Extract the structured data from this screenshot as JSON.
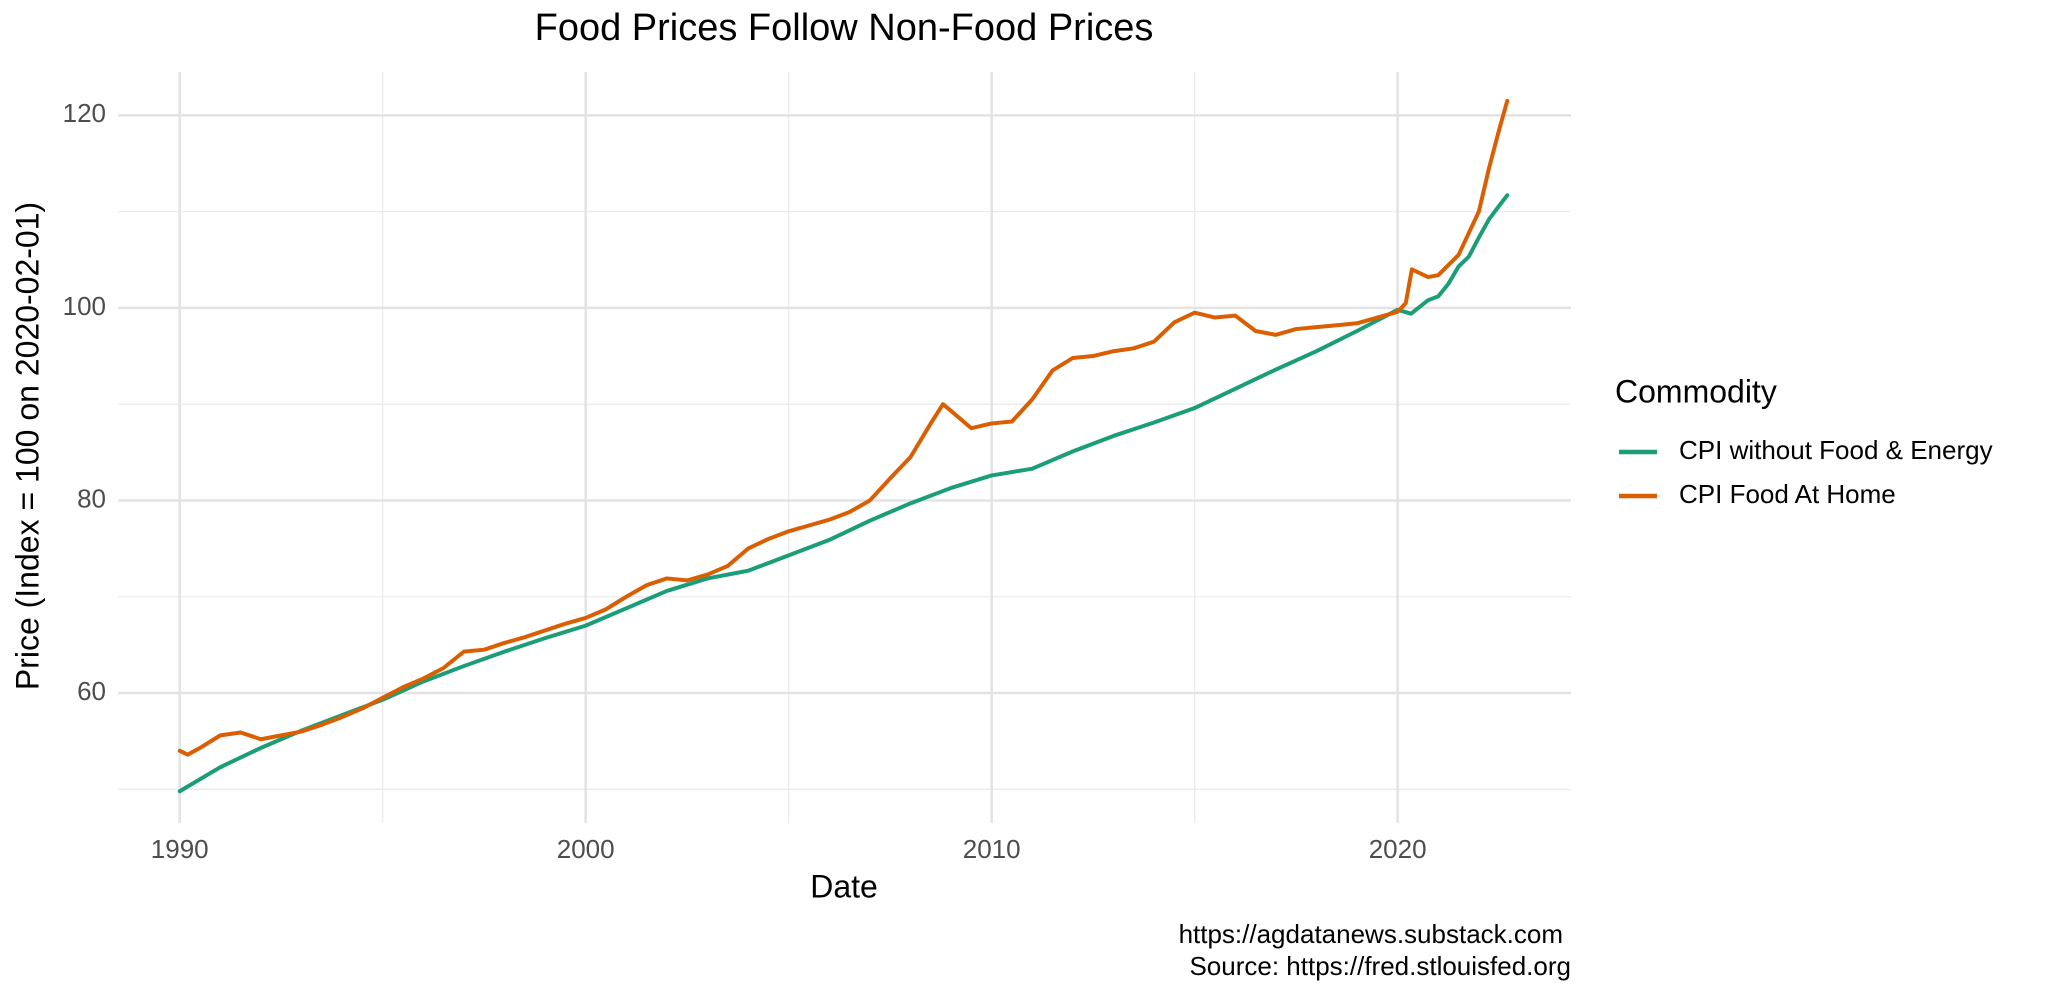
{
  "chart_data": {
    "type": "line",
    "title": "Food Prices Follow Non-Food Prices",
    "x_label": "Date",
    "y_label": "Price (Index = 100 on 2020-02-01)",
    "legend_title": "Commodity",
    "legend_position": "right",
    "caption": [
      "https://agdatanews.substack.com",
      "Source: https://fred.stlouisfed.org"
    ],
    "xlim": [
      1988.48,
      2024.27
    ],
    "ylim": [
      46.5,
      124.5
    ],
    "xticks": [
      1990,
      2000,
      2010,
      2020
    ],
    "yticks": [
      60,
      80,
      100,
      120
    ],
    "minor_xticks": [
      1995,
      2005,
      2015
    ],
    "minor_yticks": [
      50,
      70,
      90,
      110
    ],
    "grid": true,
    "series": [
      {
        "name": "CPI without Food & Energy",
        "color": "#1b9e77",
        "x": [
          1990,
          1991,
          1992,
          1993,
          1994,
          1995,
          1996,
          1997,
          1998,
          1999,
          2000,
          2001,
          2002,
          2003,
          2004,
          2005,
          2006,
          2007,
          2008,
          2009,
          2010,
          2011,
          2012,
          2013,
          2014,
          2015,
          2016,
          2017,
          2018,
          2019,
          2020,
          2020.33,
          2020.75,
          2021,
          2021.25,
          2021.5,
          2021.75,
          2022,
          2022.25,
          2022.5,
          2022.7
        ],
        "values": [
          49.8,
          52.3,
          54.3,
          56.1,
          57.7,
          59.3,
          61.2,
          62.8,
          64.3,
          65.7,
          67.0,
          68.8,
          70.6,
          71.9,
          72.7,
          74.3,
          75.9,
          77.9,
          79.7,
          81.3,
          82.6,
          83.3,
          85.1,
          86.7,
          88.1,
          89.6,
          91.6,
          93.6,
          95.5,
          97.6,
          99.8,
          99.4,
          100.8,
          101.2,
          102.5,
          104.3,
          105.3,
          107.3,
          109.2,
          110.6,
          111.7
        ]
      },
      {
        "name": "CPI Food At Home",
        "color": "#d95f02",
        "x": [
          1990,
          1990.2,
          1990.5,
          1991,
          1991.5,
          1992,
          1992.5,
          1993,
          1993.5,
          1994,
          1994.5,
          1995,
          1995.5,
          1996,
          1996.5,
          1997,
          1997.5,
          1998,
          1998.5,
          1999,
          1999.5,
          2000,
          2000.5,
          2001,
          2001.5,
          2002,
          2002.5,
          2003,
          2003.5,
          2004,
          2004.5,
          2005,
          2005.5,
          2006,
          2006.5,
          2007,
          2007.5,
          2008,
          2008.5,
          2008.8,
          2009,
          2009.5,
          2010,
          2010.5,
          2011,
          2011.5,
          2012,
          2012.5,
          2013,
          2013.5,
          2014,
          2014.5,
          2015,
          2015.5,
          2016,
          2016.5,
          2017,
          2017.5,
          2018,
          2018.5,
          2019,
          2019.5,
          2020,
          2020.2,
          2020.35,
          2020.75,
          2021,
          2021.5,
          2022,
          2022.25,
          2022.5,
          2022.7
        ],
        "values": [
          54.0,
          53.6,
          54.3,
          55.6,
          55.9,
          55.2,
          55.6,
          56.0,
          56.7,
          57.5,
          58.4,
          59.5,
          60.6,
          61.5,
          62.6,
          64.3,
          64.5,
          65.2,
          65.8,
          66.5,
          67.2,
          67.8,
          68.7,
          70.0,
          71.2,
          71.9,
          71.7,
          72.3,
          73.2,
          75.0,
          76.0,
          76.8,
          77.4,
          78.0,
          78.8,
          80.0,
          82.3,
          84.5,
          88.0,
          90.0,
          89.3,
          87.5,
          88.0,
          88.2,
          90.5,
          93.5,
          94.8,
          95.0,
          95.5,
          95.8,
          96.5,
          98.5,
          99.5,
          99.0,
          99.2,
          97.6,
          97.2,
          97.8,
          98.0,
          98.2,
          98.4,
          99.0,
          99.6,
          100.5,
          104.0,
          103.2,
          103.4,
          105.5,
          110.0,
          114.5,
          118.5,
          121.5
        ]
      }
    ]
  }
}
